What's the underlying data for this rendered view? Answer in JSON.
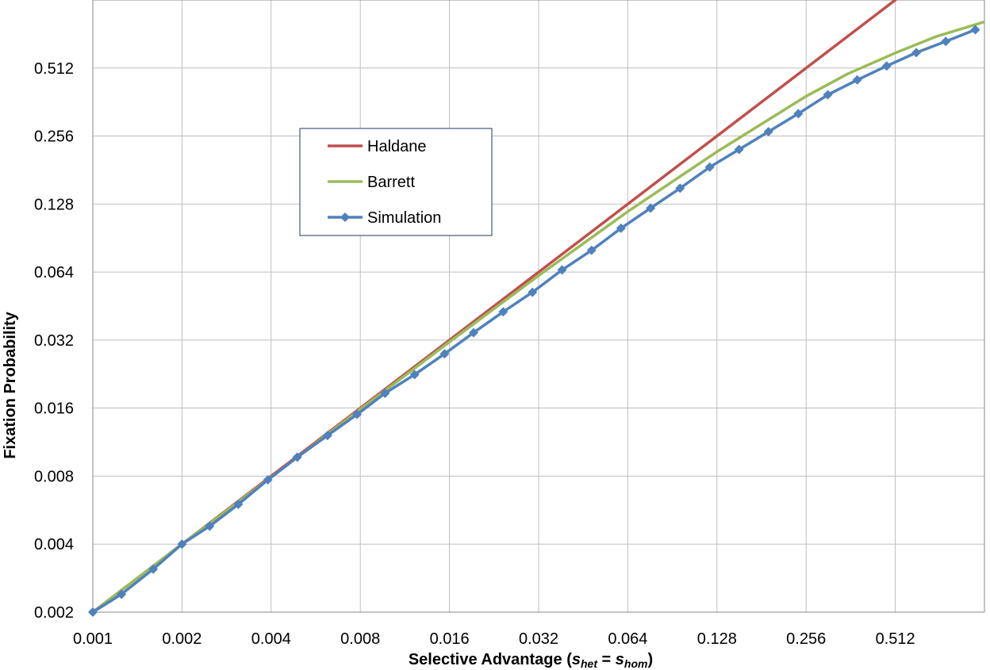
{
  "chart_data": {
    "type": "line",
    "x_scale": "log2",
    "y_scale": "log2",
    "xlim": [
      0.001,
      1.024
    ],
    "ylim": [
      0.002,
      1.024
    ],
    "grid": true,
    "legend_position": "upper-left",
    "xlabel": {
      "prefix": "Selective Advantage (",
      "s1": "s",
      "sub1": "het",
      "eq": " = ",
      "s2": "s",
      "sub2": "hom",
      "suffix": ")"
    },
    "ylabel": "Fixation Probability",
    "x_ticks": [
      "0.001",
      "0.002",
      "0.004",
      "0.008",
      "0.016",
      "0.032",
      "0.064",
      "0.128",
      "0.256",
      "0.512"
    ],
    "y_ticks": [
      "0.002",
      "0.004",
      "0.008",
      "0.016",
      "0.032",
      "0.064",
      "0.128",
      "0.256",
      "0.512"
    ],
    "series": [
      {
        "name": "Haldane",
        "color": "#c0504d",
        "marker": "none",
        "x": [
          0.001,
          0.64
        ],
        "y": [
          0.002,
          1.28
        ]
      },
      {
        "name": "Barrett",
        "color": "#9bbb59",
        "marker": "none",
        "x": [
          0.001,
          0.002,
          0.004,
          0.008,
          0.016,
          0.032,
          0.064,
          0.128,
          0.256,
          0.3535,
          0.512,
          0.7071,
          1.024
        ],
        "y": [
          0.002,
          0.004,
          0.0079,
          0.0158,
          0.0314,
          0.0617,
          0.1186,
          0.218,
          0.384,
          0.482,
          0.597,
          0.707,
          0.819
        ]
      },
      {
        "name": "Simulation",
        "color": "#4f81bd",
        "marker": "diamond",
        "x": [
          0.001,
          0.00125,
          0.0016,
          0.002,
          0.00248,
          0.0031,
          0.0039,
          0.0049,
          0.0062,
          0.0078,
          0.0097,
          0.0122,
          0.0154,
          0.0193,
          0.0243,
          0.0305,
          0.0384,
          0.0483,
          0.0607,
          0.0764,
          0.0961,
          0.121,
          0.152,
          0.191,
          0.241,
          0.303,
          0.381,
          0.479,
          0.603,
          0.758,
          0.954
        ],
        "y": [
          0.002,
          0.0024,
          0.0031,
          0.004,
          0.0048,
          0.006,
          0.0077,
          0.0097,
          0.0121,
          0.015,
          0.0186,
          0.0225,
          0.0278,
          0.0345,
          0.0427,
          0.0521,
          0.0654,
          0.0799,
          0.1,
          0.1228,
          0.1504,
          0.1865,
          0.2232,
          0.2675,
          0.3216,
          0.3897,
          0.4536,
          0.5227,
          0.5987,
          0.6715,
          0.7563
        ]
      }
    ]
  }
}
